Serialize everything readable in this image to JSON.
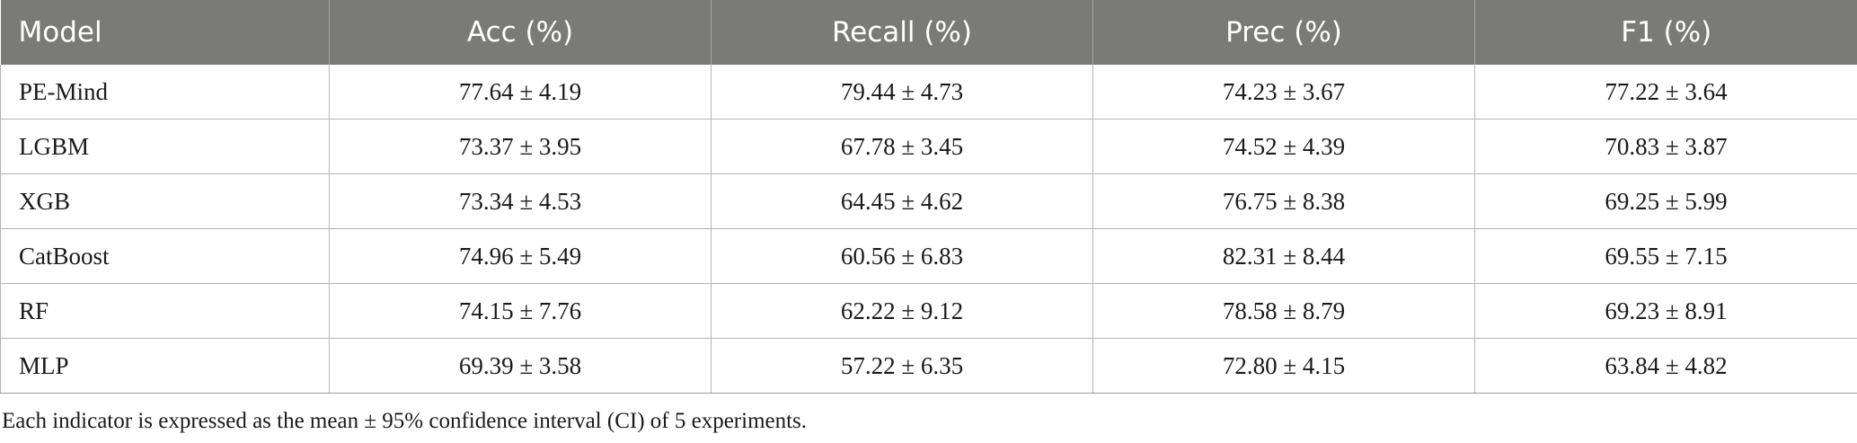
{
  "table": {
    "columns": [
      "Model",
      "Acc (%)",
      "Recall (%)",
      "Prec (%)",
      "F1 (%)"
    ],
    "rows": [
      [
        "PE-Mind",
        "77.64 ± 4.19",
        "79.44 ± 4.73",
        "74.23 ± 3.67",
        "77.22 ± 3.64"
      ],
      [
        "LGBM",
        "73.37 ± 3.95",
        "67.78 ± 3.45",
        "74.52 ± 4.39",
        "70.83 ± 3.87"
      ],
      [
        "XGB",
        "73.34 ± 4.53",
        "64.45 ± 4.62",
        "76.75 ± 8.38",
        "69.25 ± 5.99"
      ],
      [
        "CatBoost",
        "74.96 ± 5.49",
        "60.56 ± 6.83",
        "82.31 ± 8.44",
        "69.55 ± 7.15"
      ],
      [
        "RF",
        "74.15 ± 7.76",
        "62.22 ± 9.12",
        "78.58 ± 8.79",
        "69.23 ± 8.91"
      ],
      [
        "MLP",
        "69.39 ± 3.58",
        "57.22 ± 6.35",
        "72.80 ± 4.15",
        "63.84 ± 4.82"
      ]
    ]
  },
  "footnote": "Each indicator is expressed as the mean ± 95% confidence interval (CI) of 5 experiments.",
  "colors": {
    "header_bg": "#7a7b79",
    "header_text": "#ffffff",
    "grid": "#b5b5b5"
  }
}
